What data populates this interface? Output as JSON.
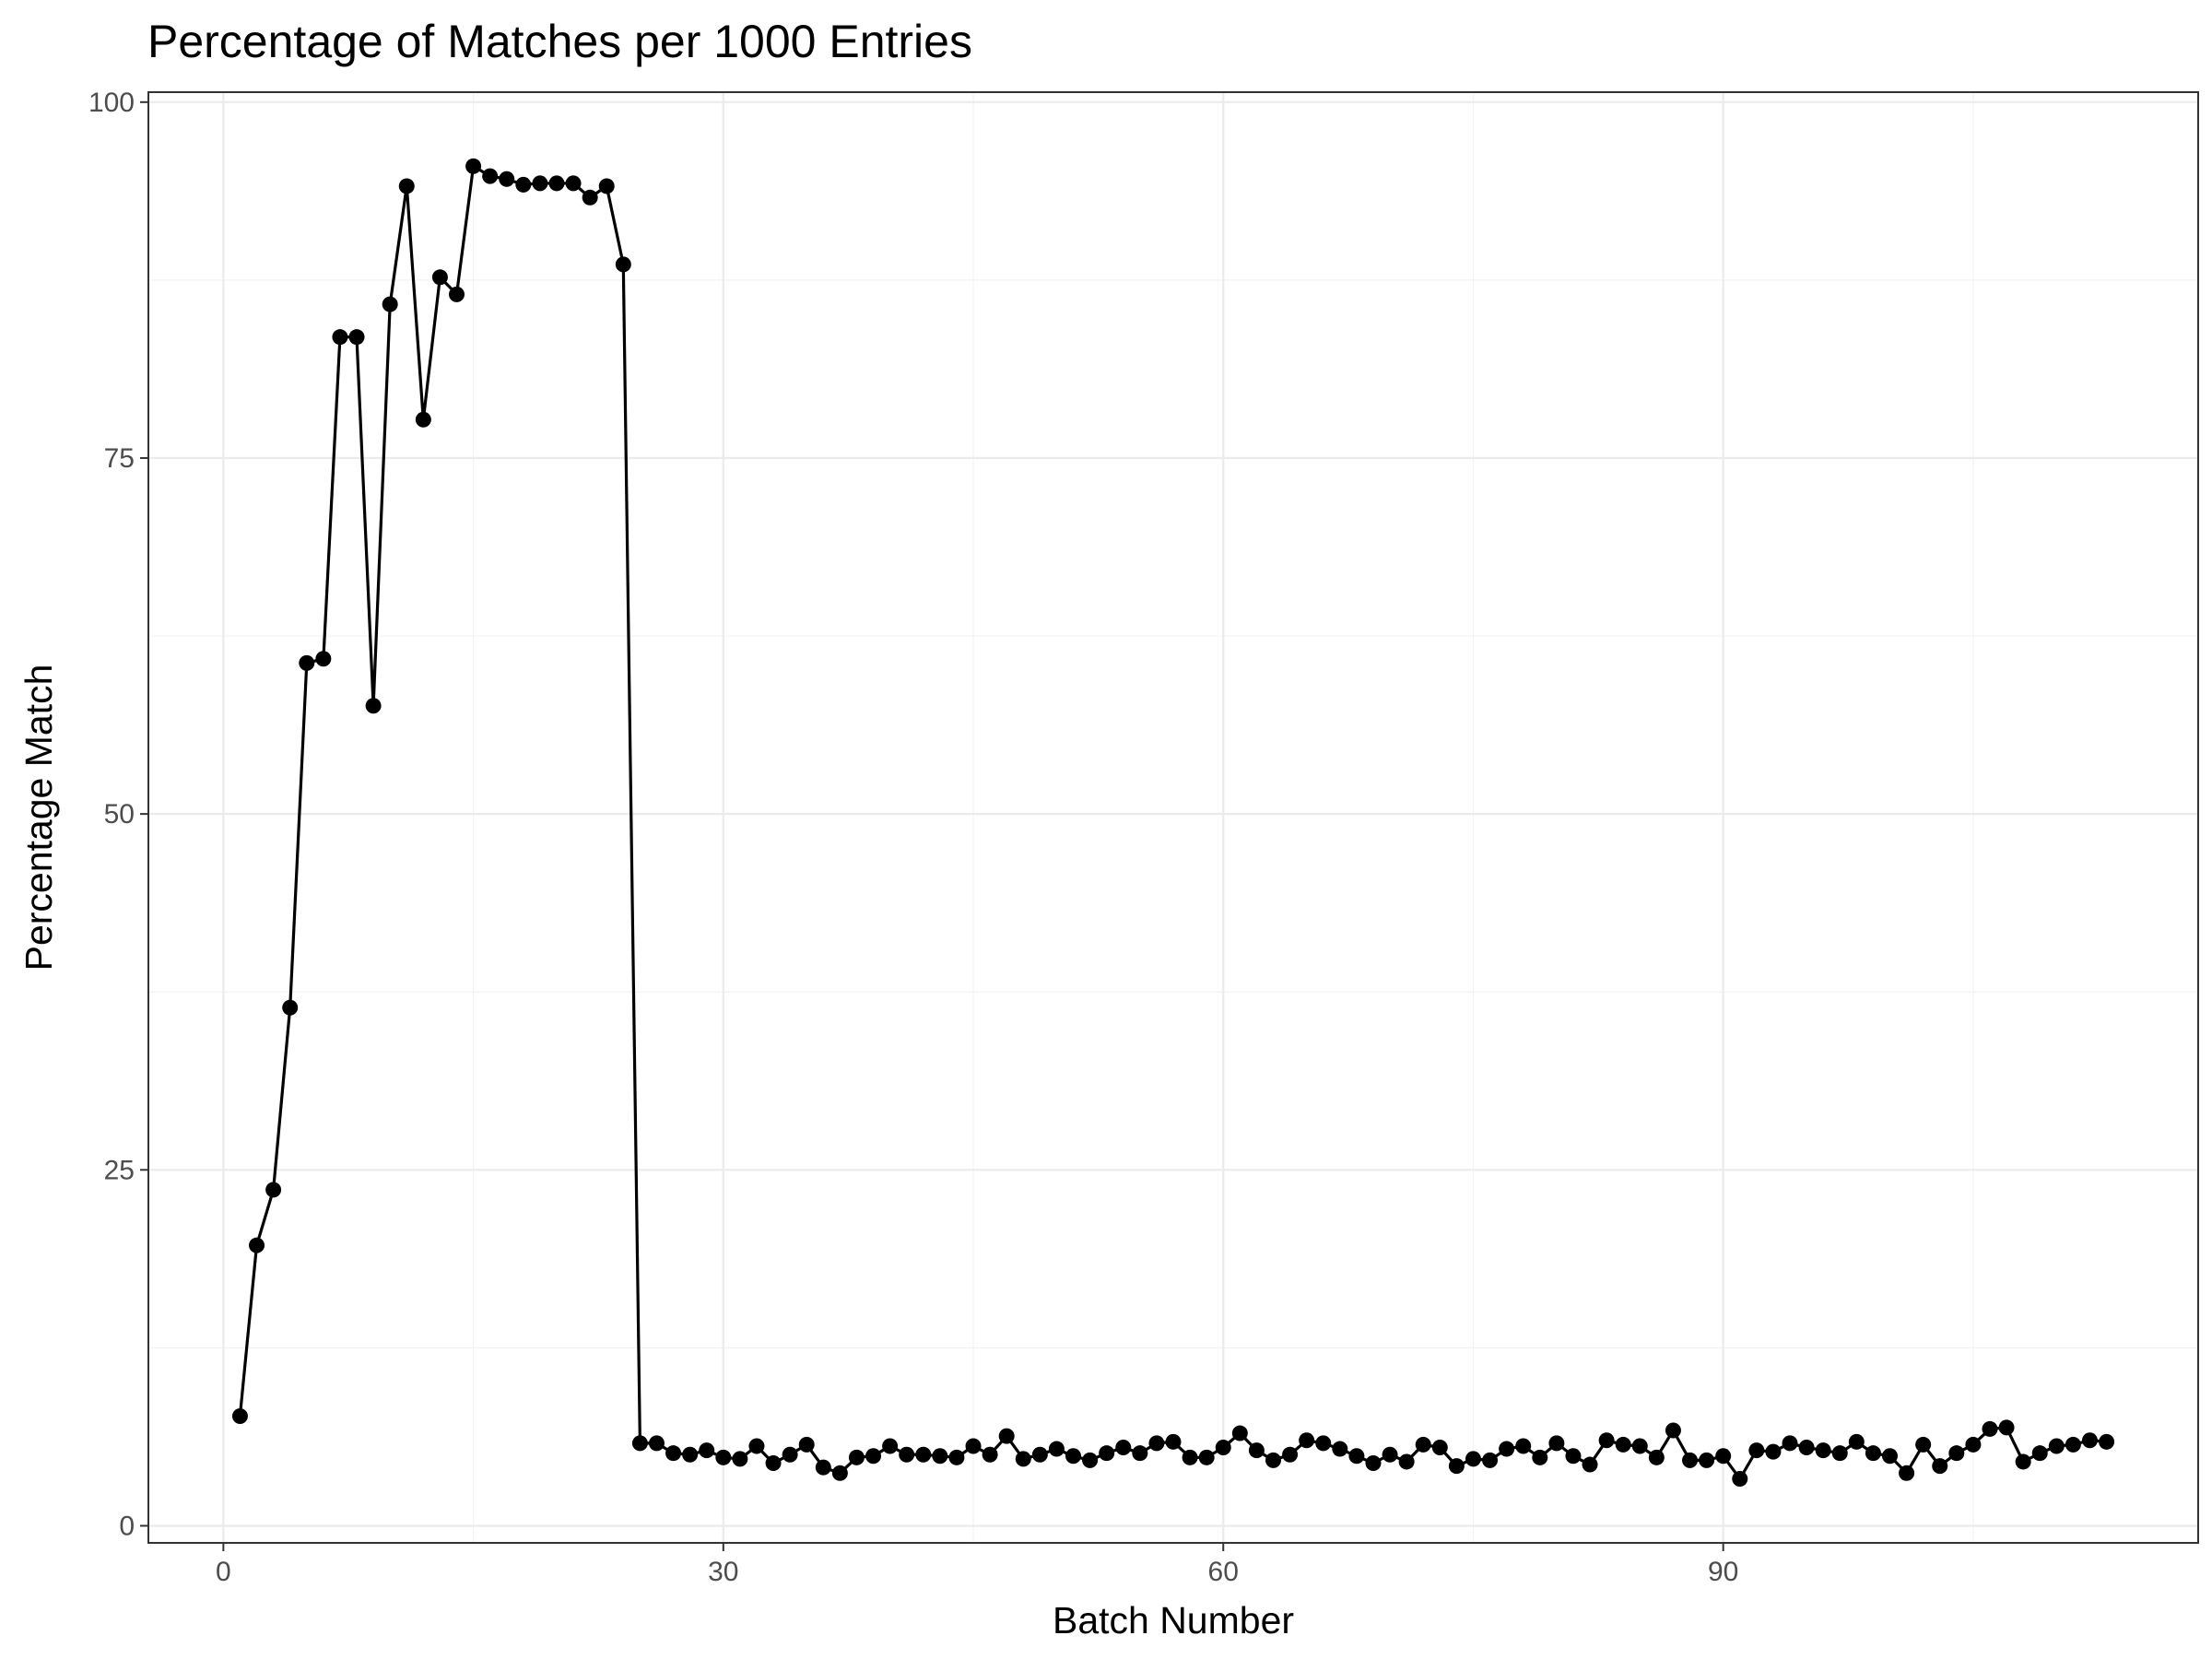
{
  "chart_data": {
    "type": "line",
    "title": "Percentage of Matches per 1000 Entries",
    "xlabel": "Batch Number",
    "ylabel": "Percentage Match",
    "xlim": [
      -4.5,
      118.5
    ],
    "ylim": [
      -1.2,
      100.7
    ],
    "xticks": [
      0,
      30,
      60,
      90
    ],
    "yticks": [
      0,
      25,
      50,
      75,
      100
    ],
    "grid": true,
    "legend": "none",
    "markers": true,
    "x": [
      1,
      2,
      3,
      4,
      5,
      6,
      7,
      8,
      9,
      10,
      11,
      12,
      13,
      14,
      15,
      16,
      17,
      18,
      19,
      20,
      21,
      22,
      23,
      24,
      25,
      26,
      27,
      28,
      29,
      30,
      31,
      32,
      33,
      34,
      35,
      36,
      37,
      38,
      39,
      40,
      41,
      42,
      43,
      44,
      45,
      46,
      47,
      48,
      49,
      50,
      51,
      52,
      53,
      54,
      55,
      56,
      57,
      58,
      59,
      60,
      61,
      62,
      63,
      64,
      65,
      66,
      67,
      68,
      69,
      70,
      71,
      72,
      73,
      74,
      75,
      76,
      77,
      78,
      79,
      80,
      81,
      82,
      83,
      84,
      85,
      86,
      87,
      88,
      89,
      90,
      91,
      92,
      93,
      94,
      95,
      96,
      97,
      98,
      99,
      100,
      101,
      102,
      103,
      104,
      105,
      106,
      107,
      108,
      109,
      110,
      111,
      112,
      113
    ],
    "series": [
      {
        "values": [
          7.7,
          19.7,
          23.6,
          36.4,
          60.6,
          60.9,
          83.5,
          83.5,
          57.6,
          85.8,
          94.1,
          77.7,
          87.7,
          86.5,
          95.5,
          94.8,
          94.6,
          94.2,
          94.3,
          94.3,
          94.3,
          93.3,
          94.1,
          88.6,
          5.8,
          5.8,
          5.1,
          5.0,
          5.3,
          4.8,
          4.7,
          5.6,
          4.4,
          5.0,
          5.7,
          4.1,
          3.7,
          4.8,
          4.9,
          5.6,
          5.0,
          5.0,
          4.9,
          4.8,
          5.6,
          5.0,
          6.3,
          4.7,
          5.0,
          5.4,
          4.9,
          4.6,
          5.1,
          5.5,
          5.1,
          5.8,
          5.9,
          4.8,
          4.8,
          5.5,
          6.5,
          5.3,
          4.6,
          5.0,
          6.0,
          5.8,
          5.4,
          4.9,
          4.4,
          5.0,
          4.5,
          5.7,
          5.5,
          4.2,
          4.7,
          4.6,
          5.4,
          5.6,
          4.8,
          5.8,
          4.9,
          4.3,
          6.0,
          5.7,
          5.6,
          4.8,
          6.7,
          4.6,
          4.6,
          4.9,
          3.3,
          5.3,
          5.2,
          5.8,
          5.5,
          5.3,
          5.1,
          5.9,
          5.1,
          4.9,
          3.7,
          5.7,
          4.2,
          5.1,
          5.7,
          6.8,
          6.9,
          4.5,
          5.1,
          5.6,
          5.7,
          6.0,
          5.9
        ]
      }
    ]
  }
}
